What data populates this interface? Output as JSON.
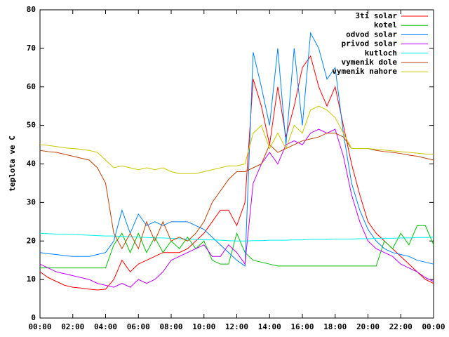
{
  "chart_data": {
    "type": "line",
    "ylabel": "teplota ve C",
    "xlim": [
      0,
      24
    ],
    "xticks": [
      {
        "value": 0,
        "label": "00:00"
      },
      {
        "value": 2,
        "label": "02:00"
      },
      {
        "value": 4,
        "label": "04:00"
      },
      {
        "value": 6,
        "label": "06:00"
      },
      {
        "value": 8,
        "label": "08:00"
      },
      {
        "value": 10,
        "label": "10:00"
      },
      {
        "value": 12,
        "label": "12:00"
      },
      {
        "value": 14,
        "label": "14:00"
      },
      {
        "value": 16,
        "label": "16:00"
      },
      {
        "value": 18,
        "label": "18:00"
      },
      {
        "value": 20,
        "label": "20:00"
      },
      {
        "value": 22,
        "label": "22:00"
      },
      {
        "value": 24,
        "label": "00:00"
      }
    ],
    "ylim": [
      0,
      80
    ],
    "yticks": [
      0,
      10,
      20,
      30,
      40,
      50,
      60,
      70,
      80
    ],
    "legend": "top-right",
    "x": [
      0,
      0.5,
      1,
      1.5,
      2,
      2.5,
      3,
      3.5,
      4,
      4.5,
      5,
      5.5,
      6,
      6.5,
      7,
      7.5,
      8,
      8.5,
      9,
      9.5,
      10,
      10.5,
      11,
      11.5,
      12,
      12.5,
      13,
      13.5,
      14,
      14.5,
      15,
      15.5,
      16,
      16.5,
      17,
      17.5,
      18,
      18.5,
      19,
      19.5,
      20,
      20.5,
      21,
      21.5,
      22,
      22.5,
      23,
      23.5,
      24
    ],
    "series": [
      {
        "name": "3ti solar",
        "color": "#ff0000",
        "values": [
          12,
          10.5,
          9.5,
          8.5,
          8,
          7.8,
          7.5,
          7.3,
          7.5,
          10,
          15,
          12,
          14,
          15,
          16,
          17,
          17,
          17,
          18,
          20,
          22,
          25,
          28,
          28,
          24,
          30,
          62,
          55,
          45,
          60,
          47,
          55,
          65,
          68,
          60,
          55,
          60,
          50,
          40,
          32,
          25,
          22,
          20,
          18,
          16,
          14,
          12,
          10,
          9
        ]
      },
      {
        "name": "kotel",
        "color": "#00c000",
        "values": [
          13,
          13,
          13,
          13,
          13,
          13,
          13,
          13,
          13,
          19,
          22,
          17,
          22,
          17,
          21,
          17,
          20,
          18,
          21,
          18,
          20,
          15,
          14,
          14,
          22,
          17,
          15,
          14.5,
          14,
          13.5,
          13.5,
          13.5,
          13.5,
          13.5,
          13.5,
          13.5,
          13.5,
          13.5,
          13.5,
          13.5,
          13.5,
          13.5,
          20,
          18,
          22,
          19,
          24,
          24,
          19
        ]
      },
      {
        "name": "odvod solar",
        "color": "#0080ff",
        "values": [
          17,
          16.7,
          16.5,
          16.2,
          16,
          16,
          16,
          16.5,
          17,
          20,
          28,
          22,
          27,
          24,
          25,
          24,
          25,
          25,
          25,
          24,
          23,
          21,
          19,
          17,
          15,
          13.5,
          69,
          60,
          50,
          70,
          45,
          70,
          50,
          74,
          70,
          62,
          65,
          48,
          35,
          28,
          23,
          20,
          18,
          17,
          16.5,
          16,
          15,
          14.5,
          14
        ]
      },
      {
        "name": "privod solar",
        "color": "#c000ff",
        "values": [
          14,
          13,
          12,
          11.5,
          11,
          10.5,
          10,
          9,
          8.5,
          8,
          9,
          8,
          10,
          9,
          10,
          12,
          15,
          16,
          17,
          18,
          19,
          16,
          16,
          19,
          17,
          14,
          35,
          40,
          43,
          40,
          45,
          46,
          45,
          48,
          49,
          48,
          49,
          42,
          32,
          25,
          20,
          18,
          17,
          16,
          14,
          13,
          12,
          10.5,
          9.5
        ]
      },
      {
        "name": "kutloch",
        "color": "#00eeee",
        "values": [
          22,
          21.9,
          21.8,
          21.8,
          21.7,
          21.6,
          21.5,
          21.4,
          21.3,
          21.3,
          21.2,
          21.1,
          21,
          20.9,
          20.8,
          20.8,
          20.7,
          20.6,
          20.5,
          20.4,
          20.3,
          20.3,
          20.2,
          20.1,
          20,
          20,
          20.1,
          20.1,
          20.2,
          20.2,
          20.2,
          20.3,
          20.3,
          20.4,
          20.4,
          20.4,
          20.5,
          20.5,
          20.5,
          20.6,
          20.6,
          20.7,
          20.7,
          20.7,
          20.8,
          20.8,
          20.9,
          20.9,
          21
        ]
      },
      {
        "name": "vymenik dole",
        "color": "#c04000",
        "values": [
          43.5,
          43.2,
          43,
          42.5,
          42,
          41.5,
          41,
          39,
          35,
          22,
          18,
          22,
          18,
          25,
          20,
          25,
          20,
          21,
          20,
          22,
          25,
          30,
          33,
          36,
          38,
          38,
          39,
          40,
          45,
          43,
          44,
          45,
          46,
          46.5,
          47,
          48,
          48,
          47,
          44,
          44,
          44,
          43.5,
          43.2,
          43,
          42.7,
          42.3,
          42,
          41.5,
          41
        ]
      },
      {
        "name": "vymenik nahore",
        "color": "#c8c800",
        "values": [
          45,
          44.8,
          44.5,
          44.2,
          44,
          43.8,
          43.5,
          43,
          41,
          39,
          39.5,
          39,
          38.5,
          39,
          38.5,
          39,
          38,
          37.5,
          37.5,
          37.5,
          38,
          38.5,
          39,
          39.5,
          39.5,
          40,
          48,
          50,
          44,
          48,
          44,
          50,
          48,
          54,
          55,
          54,
          52,
          48,
          44,
          44,
          44,
          43.8,
          43.6,
          43.4,
          43.2,
          43,
          42.8,
          42.6,
          42.5
        ]
      }
    ]
  }
}
